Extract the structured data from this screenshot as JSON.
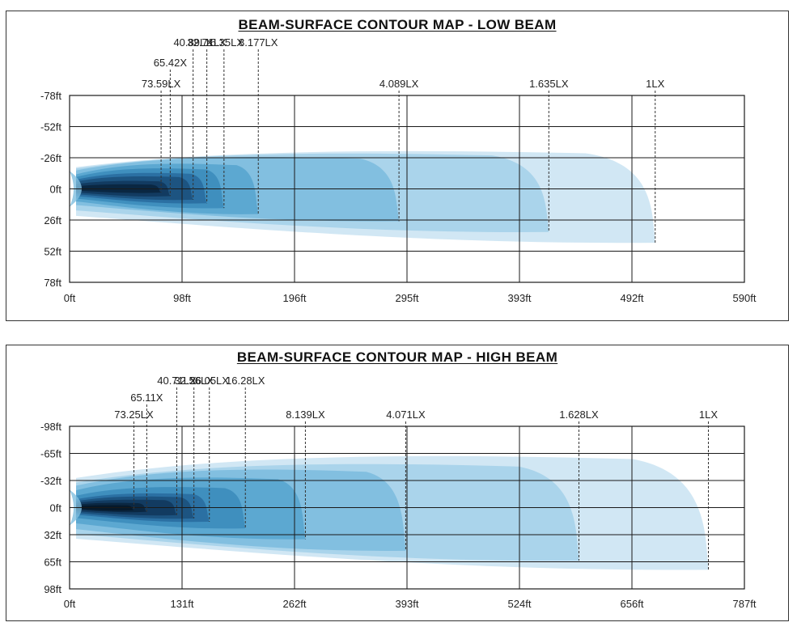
{
  "chart_data": [
    {
      "type": "heatmap",
      "title": "BEAM-SURFACE CONTOUR MAP - LOW BEAM",
      "x_ticks": [
        "0ft",
        "98ft",
        "196ft",
        "295ft",
        "393ft",
        "492ft",
        "590ft"
      ],
      "y_ticks": [
        "-78ft",
        "-52ft",
        "-26ft",
        "0ft",
        "26ft",
        "52ft",
        "78ft"
      ],
      "xlim": [
        0,
        590
      ],
      "ylim": [
        -78,
        78
      ],
      "grid": true,
      "contours": [
        {
          "label": "1LX",
          "reach": 512,
          "lateral": [
            -33,
            45
          ]
        },
        {
          "label": "1.635LX",
          "reach": 419,
          "lateral": [
            -31,
            36
          ]
        },
        {
          "label": "4.089LX",
          "reach": 288,
          "lateral": [
            -28,
            27
          ]
        },
        {
          "label": "8.177LX",
          "reach": 165,
          "lateral": [
            -22,
            21
          ]
        },
        {
          "label": "16.35LX",
          "reach": 135,
          "lateral": [
            -18,
            16
          ]
        },
        {
          "label": "32.71LX",
          "reach": 120,
          "lateral": [
            -14,
            12
          ]
        },
        {
          "label": "40.89LX",
          "reach": 108,
          "lateral": [
            -11,
            9
          ]
        },
        {
          "label": "65.42X",
          "reach": 88,
          "lateral": [
            -7,
            6
          ]
        },
        {
          "label": "73.59LX",
          "reach": 80,
          "lateral": [
            -4,
            3
          ]
        }
      ]
    },
    {
      "type": "heatmap",
      "title": "BEAM-SURFACE CONTOUR MAP - HIGH BEAM",
      "x_ticks": [
        "0ft",
        "131ft",
        "262ft",
        "393ft",
        "524ft",
        "656ft",
        "787ft"
      ],
      "y_ticks": [
        "-98ft",
        "-65ft",
        "-32ft",
        "0ft",
        "32ft",
        "65ft",
        "98ft"
      ],
      "xlim": [
        0,
        787
      ],
      "ylim": [
        -98,
        98
      ],
      "grid": true,
      "contours": [
        {
          "label": "1LX",
          "reach": 745,
          "lateral": [
            -65,
            75
          ]
        },
        {
          "label": "1.628LX",
          "reach": 594,
          "lateral": [
            -55,
            64
          ]
        },
        {
          "label": "4.071LX",
          "reach": 392,
          "lateral": [
            -48,
            52
          ]
        },
        {
          "label": "8.139LX",
          "reach": 275,
          "lateral": [
            -38,
            38
          ]
        },
        {
          "label": "16.28LX",
          "reach": 205,
          "lateral": [
            -26,
            25
          ]
        },
        {
          "label": "26.05LX",
          "reach": 163,
          "lateral": [
            -18,
            17
          ]
        },
        {
          "label": "32.56LX",
          "reach": 145,
          "lateral": [
            -14,
            13
          ]
        },
        {
          "label": "40.71LX",
          "reach": 125,
          "lateral": [
            -10,
            9
          ]
        },
        {
          "label": "65.11X",
          "reach": 90,
          "lateral": [
            -6,
            5
          ]
        },
        {
          "label": "73.25LX",
          "reach": 75,
          "lateral": [
            -3,
            3
          ]
        }
      ]
    }
  ],
  "colors": {
    "contour_fills": [
      "#cfe6f3",
      "#a8d3ea",
      "#7fbedf",
      "#5aa6d0",
      "#3d8dbd",
      "#2a6fa1",
      "#1c5280",
      "#123a5f",
      "#0b2640",
      "#061829"
    ],
    "grid": "#1a1a1a",
    "leader": "#333333"
  }
}
